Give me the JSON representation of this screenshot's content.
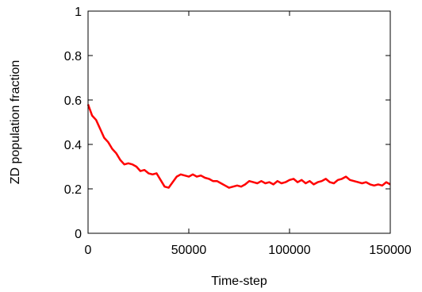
{
  "chart_data": {
    "type": "line",
    "title": "",
    "xlabel": "Time-step",
    "ylabel": "ZD population fraction",
    "xlim": [
      0,
      150000
    ],
    "ylim": [
      0,
      1
    ],
    "xticks": [
      0,
      50000,
      100000,
      150000
    ],
    "xtick_labels": [
      "0",
      "50000",
      "100000",
      "150000"
    ],
    "yticks": [
      0,
      0.2,
      0.4,
      0.6,
      0.8,
      1
    ],
    "ytick_labels": [
      "0",
      "0.2",
      "0.4",
      "0.6",
      "0.8",
      "1"
    ],
    "grid": false,
    "legend": "none",
    "series": [
      {
        "color": "#ff0000",
        "x": [
          0,
          2000,
          4000,
          6000,
          8000,
          10000,
          12000,
          14000,
          16000,
          18000,
          20000,
          22000,
          24000,
          26000,
          28000,
          30000,
          32000,
          34000,
          36000,
          38000,
          40000,
          42000,
          44000,
          46000,
          48000,
          50000,
          52000,
          54000,
          56000,
          58000,
          60000,
          62000,
          64000,
          66000,
          68000,
          70000,
          72000,
          74000,
          76000,
          78000,
          80000,
          82000,
          84000,
          86000,
          88000,
          90000,
          92000,
          94000,
          96000,
          98000,
          100000,
          102000,
          104000,
          106000,
          108000,
          110000,
          112000,
          114000,
          116000,
          118000,
          120000,
          122000,
          124000,
          126000,
          128000,
          130000,
          132000,
          134000,
          136000,
          138000,
          140000,
          142000,
          144000,
          146000,
          148000,
          150000
        ],
        "y": [
          0.58,
          0.53,
          0.51,
          0.47,
          0.43,
          0.41,
          0.38,
          0.36,
          0.33,
          0.31,
          0.315,
          0.31,
          0.3,
          0.28,
          0.285,
          0.27,
          0.265,
          0.27,
          0.24,
          0.21,
          0.205,
          0.23,
          0.255,
          0.265,
          0.26,
          0.255,
          0.265,
          0.255,
          0.26,
          0.25,
          0.245,
          0.235,
          0.235,
          0.225,
          0.215,
          0.205,
          0.21,
          0.215,
          0.21,
          0.22,
          0.235,
          0.23,
          0.225,
          0.235,
          0.225,
          0.23,
          0.22,
          0.235,
          0.225,
          0.23,
          0.24,
          0.245,
          0.23,
          0.24,
          0.225,
          0.235,
          0.22,
          0.23,
          0.235,
          0.245,
          0.23,
          0.225,
          0.24,
          0.245,
          0.255,
          0.24,
          0.235,
          0.23,
          0.225,
          0.23,
          0.22,
          0.215,
          0.22,
          0.215,
          0.23,
          0.22
        ]
      }
    ]
  }
}
